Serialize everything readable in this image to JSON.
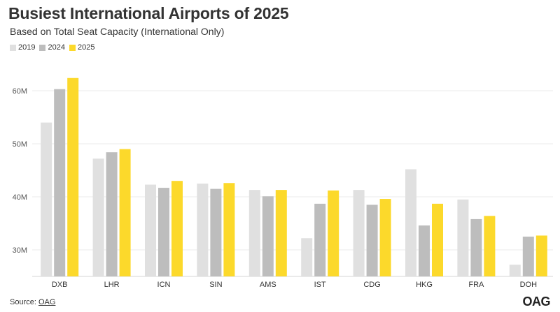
{
  "title": "Busiest International Airports of 2025",
  "subtitle": "Based on Total Seat Capacity (International Only)",
  "source_label": "Source:",
  "source_link": "OAG",
  "logo_text": "OAG",
  "colors": {
    "2019": "#e0e0e0",
    "2024": "#bdbdbd",
    "2025": "#fcd92b",
    "grid": "#ebebeb",
    "tick": "#555555"
  },
  "chart_data": {
    "type": "bar",
    "title": "Busiest International Airports of 2025",
    "subtitle": "Based on Total Seat Capacity (International Only)",
    "categories": [
      "DXB",
      "LHR",
      "ICN",
      "SIN",
      "AMS",
      "IST",
      "CDG",
      "HKG",
      "FRA",
      "DOH"
    ],
    "series": [
      {
        "name": "2019",
        "values": [
          54.0,
          47.2,
          42.3,
          42.5,
          41.3,
          32.2,
          41.3,
          45.2,
          39.5,
          27.2
        ]
      },
      {
        "name": "2024",
        "values": [
          60.3,
          48.4,
          41.7,
          41.5,
          40.1,
          38.7,
          38.5,
          34.6,
          35.8,
          32.5
        ]
      },
      {
        "name": "2025",
        "values": [
          62.4,
          49.0,
          43.0,
          42.6,
          41.3,
          41.2,
          39.6,
          38.7,
          36.4,
          32.7
        ]
      }
    ],
    "ylim": [
      25,
      65
    ],
    "yticks": [
      30,
      40,
      50,
      60
    ],
    "ytick_labels": [
      "30M",
      "40M",
      "50M",
      "60M"
    ],
    "legend": "top-left",
    "grid": true
  }
}
